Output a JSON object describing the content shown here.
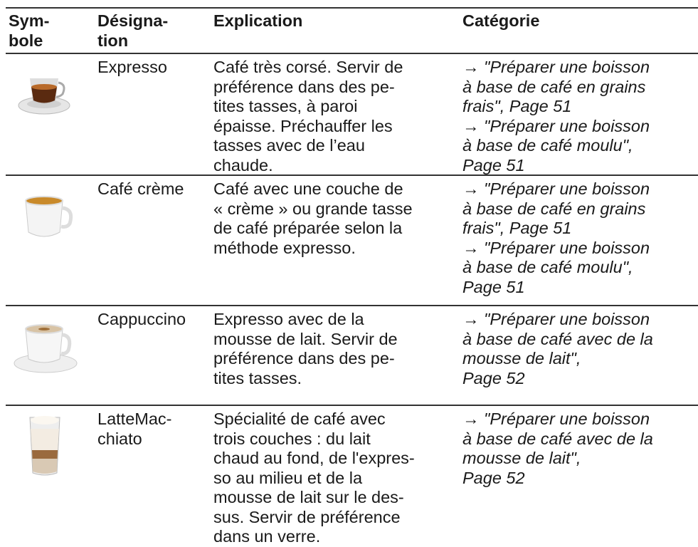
{
  "table": {
    "header": [
      [
        "Sym-",
        "bole"
      ],
      [
        "Désigna-",
        "tion"
      ],
      [
        "Explication"
      ],
      [
        "Catégorie"
      ]
    ],
    "rows": [
      {
        "designation": [
          "Expresso"
        ],
        "explication": [
          "Café très corsé. Servir de",
          "préférence dans des pe-",
          "tites tasses, à paroi",
          "épaisse. Préchauffer les",
          "tasses avec de l’eau",
          "chaude."
        ],
        "categorie": [
          "→ \"Préparer une boisson",
          "à base de café en grains",
          "frais\", Page 51",
          "→ \"Préparer une boisson",
          "à base de café moulu\",",
          "Page 51"
        ]
      },
      {
        "designation": [
          "Café crème"
        ],
        "explication": [
          "Café avec une couche de",
          "« crème » ou grande tasse",
          "de café préparée selon la",
          "méthode expresso."
        ],
        "categorie": [
          "→ \"Préparer une boisson",
          "à base de café en grains",
          "frais\", Page 51",
          "→ \"Préparer une boisson",
          "à base de café moulu\",",
          "Page 51"
        ]
      },
      {
        "designation": [
          "Cappuccino"
        ],
        "explication": [
          "Expresso avec de la",
          "mousse de lait. Servir de",
          "préférence dans des pe-",
          "tites tasses."
        ],
        "categorie": [
          "→ \"Préparer une boisson",
          "à base de café avec de la",
          "mousse de lait\",",
          "Page 52"
        ]
      },
      {
        "designation": [
          "LatteMac-",
          "chiato"
        ],
        "explication": [
          "Spécialité de café avec",
          "trois couches : du lait",
          "chaud au fond, de l'expres-",
          "so au milieu et de la",
          "mousse de lait sur le des-",
          "sus. Servir de préférence",
          "dans un verre."
        ],
        "categorie": [
          "→ \"Préparer une boisson",
          "à base de café avec de la",
          "mousse de lait\",",
          "Page 52"
        ]
      }
    ]
  }
}
